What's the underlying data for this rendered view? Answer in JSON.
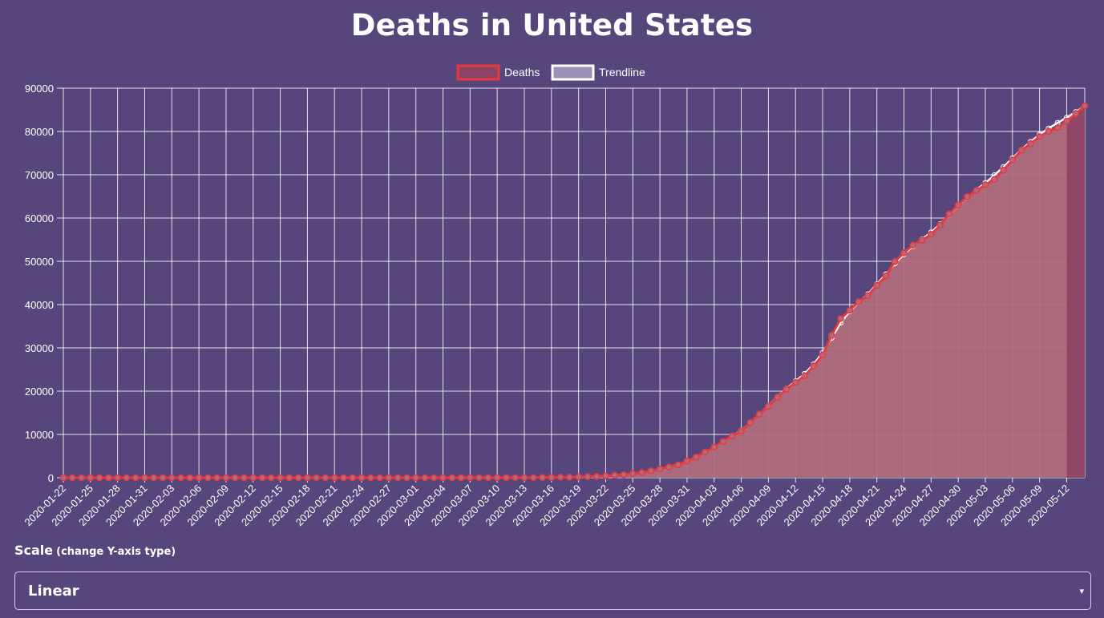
{
  "page": {
    "title": "Deaths in United States"
  },
  "controls": {
    "scale_label": "Scale",
    "scale_hint": "(change Y-axis type)",
    "scale_selected": "Linear",
    "dropdown_arrow": "▾"
  },
  "colors": {
    "background": "#57467b",
    "deaths_line": "#e8383d",
    "deaths_fill": "#b06b7c",
    "deaths_fill_last": "#8e4466",
    "trendline": "#ffffff",
    "grid": "#ffffff"
  },
  "chart_data": {
    "type": "line",
    "title": "Deaths in United States",
    "ylim": [
      0,
      90000
    ],
    "yticks": [
      0,
      10000,
      20000,
      30000,
      40000,
      50000,
      60000,
      70000,
      80000,
      90000
    ],
    "grid": true,
    "legend_position": "top-center",
    "legend": [
      "Deaths",
      "Trendline"
    ],
    "x": [
      "2020-01-22",
      "2020-01-23",
      "2020-01-24",
      "2020-01-25",
      "2020-01-26",
      "2020-01-27",
      "2020-01-28",
      "2020-01-29",
      "2020-01-30",
      "2020-01-31",
      "2020-02-01",
      "2020-02-02",
      "2020-02-03",
      "2020-02-04",
      "2020-02-05",
      "2020-02-06",
      "2020-02-07",
      "2020-02-08",
      "2020-02-09",
      "2020-02-10",
      "2020-02-11",
      "2020-02-12",
      "2020-02-13",
      "2020-02-14",
      "2020-02-15",
      "2020-02-16",
      "2020-02-17",
      "2020-02-18",
      "2020-02-19",
      "2020-02-20",
      "2020-02-21",
      "2020-02-22",
      "2020-02-23",
      "2020-02-24",
      "2020-02-25",
      "2020-02-26",
      "2020-02-27",
      "2020-02-28",
      "2020-02-29",
      "2020-03-01",
      "2020-03-02",
      "2020-03-03",
      "2020-03-04",
      "2020-03-05",
      "2020-03-06",
      "2020-03-07",
      "2020-03-08",
      "2020-03-09",
      "2020-03-10",
      "2020-03-11",
      "2020-03-12",
      "2020-03-13",
      "2020-03-14",
      "2020-03-15",
      "2020-03-16",
      "2020-03-17",
      "2020-03-18",
      "2020-03-19",
      "2020-03-20",
      "2020-03-21",
      "2020-03-22",
      "2020-03-23",
      "2020-03-24",
      "2020-03-25",
      "2020-03-26",
      "2020-03-27",
      "2020-03-28",
      "2020-03-29",
      "2020-03-30",
      "2020-03-31",
      "2020-04-01",
      "2020-04-02",
      "2020-04-03",
      "2020-04-04",
      "2020-04-05",
      "2020-04-06",
      "2020-04-07",
      "2020-04-08",
      "2020-04-09",
      "2020-04-10",
      "2020-04-11",
      "2020-04-12",
      "2020-04-13",
      "2020-04-14",
      "2020-04-15",
      "2020-04-16",
      "2020-04-17",
      "2020-04-18",
      "2020-04-19",
      "2020-04-20",
      "2020-04-21",
      "2020-04-22",
      "2020-04-23",
      "2020-04-24",
      "2020-04-25",
      "2020-04-26",
      "2020-04-27",
      "2020-04-28",
      "2020-04-29",
      "2020-04-30",
      "2020-05-01",
      "2020-05-02",
      "2020-05-03",
      "2020-05-04",
      "2020-05-05",
      "2020-05-06",
      "2020-05-07",
      "2020-05-08",
      "2020-05-09",
      "2020-05-10",
      "2020-05-11",
      "2020-05-12",
      "2020-05-13",
      "2020-05-14"
    ],
    "x_tick_labels": [
      "2020-01-22",
      "2020-01-25",
      "2020-01-28",
      "2020-01-31",
      "2020-02-03",
      "2020-02-06",
      "2020-02-09",
      "2020-02-12",
      "2020-02-15",
      "2020-02-18",
      "2020-02-21",
      "2020-02-24",
      "2020-02-27",
      "2020-03-01",
      "2020-03-04",
      "2020-03-07",
      "2020-03-10",
      "2020-03-13",
      "2020-03-16",
      "2020-03-19",
      "2020-03-22",
      "2020-03-25",
      "2020-03-28",
      "2020-03-31",
      "2020-04-03",
      "2020-04-06",
      "2020-04-09",
      "2020-04-12",
      "2020-04-15",
      "2020-04-18",
      "2020-04-21",
      "2020-04-24",
      "2020-04-27",
      "2020-04-30",
      "2020-05-03",
      "2020-05-06",
      "2020-05-09",
      "2020-05-12"
    ],
    "series": [
      {
        "name": "Deaths",
        "values": [
          0,
          0,
          0,
          0,
          0,
          0,
          0,
          0,
          0,
          0,
          0,
          0,
          0,
          0,
          0,
          0,
          0,
          0,
          0,
          0,
          0,
          0,
          0,
          0,
          0,
          0,
          0,
          0,
          0,
          0,
          0,
          0,
          0,
          0,
          0,
          0,
          0,
          0,
          1,
          1,
          6,
          7,
          11,
          12,
          14,
          17,
          21,
          22,
          28,
          36,
          40,
          47,
          54,
          63,
          85,
          108,
          118,
          200,
          244,
          307,
          427,
          552,
          706,
          942,
          1209,
          1581,
          2026,
          2467,
          2978,
          3873,
          4757,
          5926,
          7087,
          8407,
          9619,
          10783,
          12722,
          14695,
          16478,
          18586,
          20463,
          22020,
          23529,
          25831,
          28325,
          32916,
          36773,
          38664,
          40661,
          42094,
          44444,
          46622,
          49954,
          51949,
          53755,
          54881,
          56219,
          58355,
          60967,
          62996,
          64943,
          66369,
          67682,
          68922,
          71064,
          73431,
          75662,
          77180,
          78795,
          80037,
          80787,
          82376,
          84119,
          85898
        ]
      },
      {
        "name": "Trendline",
        "values": [
          0,
          0,
          0,
          0,
          0,
          0,
          0,
          0,
          0,
          0,
          0,
          0,
          0,
          0,
          0,
          0,
          0,
          0,
          0,
          0,
          0,
          0,
          0,
          0,
          0,
          0,
          0,
          0,
          0,
          0,
          0,
          0,
          0,
          0,
          0,
          0,
          0,
          0,
          1,
          2,
          5,
          8,
          10,
          12,
          15,
          17,
          20,
          23,
          28,
          35,
          41,
          48,
          56,
          67,
          85,
          105,
          135,
          185,
          245,
          320,
          430,
          560,
          720,
          940,
          1210,
          1580,
          2020,
          2480,
          3040,
          3820,
          4750,
          5850,
          7050,
          8350,
          9650,
          10950,
          12700,
          14700,
          16600,
          18700,
          20600,
          22300,
          24000,
          26200,
          28900,
          32300,
          35800,
          38400,
          40500,
          42400,
          44700,
          47000,
          49500,
          51600,
          53500,
          55100,
          56700,
          58600,
          60800,
          62900,
          64800,
          66500,
          68100,
          69900,
          71800,
          73800,
          75800,
          77600,
          79300,
          80700,
          82000,
          83200,
          84500,
          85900
        ]
      }
    ]
  }
}
